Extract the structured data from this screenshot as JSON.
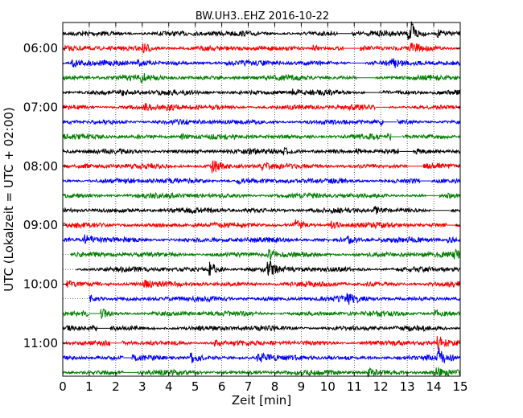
{
  "chart_data": {
    "type": "line",
    "title": "BW.UH3..EHZ 2016-10-22",
    "xlabel": "Zeit  [min]",
    "ylabel": "UTC (Lokalzeit = UTC + 02:00)",
    "xlim": [
      0,
      15
    ],
    "x_ticks": [
      "0",
      "1",
      "2",
      "3",
      "4",
      "5",
      "6",
      "7",
      "8",
      "9",
      "10",
      "11",
      "12",
      "13",
      "14",
      "15"
    ],
    "y_ticks": [
      "06:00",
      "07:00",
      "08:00",
      "09:00",
      "10:00",
      "11:00"
    ],
    "trace_start": "05:45",
    "trace_minutes": 15,
    "trace_count": 24,
    "colors": [
      "#000000",
      "#ff0000",
      "#0000ff",
      "#008000"
    ],
    "grid": true,
    "grid_style": "dotted",
    "traces": [
      {
        "start": "05:45",
        "color": "#000000",
        "gaps": [
          [
            10.4,
            10.9
          ]
        ]
      },
      {
        "start": "06:00",
        "color": "#ff0000",
        "gaps": [
          [
            10.6,
            11.2
          ]
        ]
      },
      {
        "start": "06:15",
        "color": "#0000ff",
        "gaps": [
          [
            10.9,
            11.4
          ]
        ]
      },
      {
        "start": "06:30",
        "color": "#008000",
        "gaps": [
          [
            11.1,
            11.8
          ]
        ]
      },
      {
        "start": "06:45",
        "color": "#000000",
        "gaps": [
          [
            11.4,
            11.9
          ]
        ]
      },
      {
        "start": "07:00",
        "color": "#ff0000",
        "gaps": [
          [
            11.8,
            12.3
          ]
        ]
      },
      {
        "start": "07:15",
        "color": "#0000ff",
        "gaps": [
          [
            12.1,
            12.6
          ]
        ]
      },
      {
        "start": "07:30",
        "color": "#008000",
        "gaps": [
          [
            12.4,
            12.8
          ]
        ]
      },
      {
        "start": "07:45",
        "color": "#000000",
        "gaps": [
          [
            12.7,
            13.2
          ]
        ]
      },
      {
        "start": "08:00",
        "color": "#ff0000",
        "gaps": [
          [
            13.0,
            13.6
          ]
        ]
      },
      {
        "start": "08:15",
        "color": "#0000ff",
        "gaps": [
          [
            13.5,
            13.9
          ]
        ]
      },
      {
        "start": "08:30",
        "color": "#008000",
        "gaps": [
          [
            13.7,
            14.2
          ]
        ]
      },
      {
        "start": "08:45",
        "color": "#000000",
        "gaps": [
          [
            13.9,
            14.6
          ]
        ]
      },
      {
        "start": "09:00",
        "color": "#ff0000",
        "gaps": [
          [
            14.5,
            14.8
          ]
        ]
      },
      {
        "start": "09:15",
        "color": "#0000ff",
        "gaps": []
      },
      {
        "start": "09:30",
        "color": "#008000",
        "gaps": [
          [
            0.0,
            0.3
          ]
        ]
      },
      {
        "start": "09:45",
        "color": "#000000",
        "gaps": [
          [
            0.0,
            0.5
          ]
        ]
      },
      {
        "start": "10:00",
        "color": "#ff0000",
        "gaps": [
          [
            0.0,
            0.1
          ]
        ]
      },
      {
        "start": "10:15",
        "color": "#0000ff",
        "gaps": [
          [
            0.0,
            1.0
          ]
        ]
      },
      {
        "start": "10:30",
        "color": "#008000",
        "gaps": [
          [
            1.0,
            1.4
          ]
        ]
      },
      {
        "start": "10:45",
        "color": "#000000",
        "gaps": [
          [
            1.3,
            1.8
          ]
        ]
      },
      {
        "start": "11:00",
        "color": "#ff0000",
        "gaps": [
          [
            1.8,
            2.2
          ]
        ]
      },
      {
        "start": "11:15",
        "color": "#0000ff",
        "gaps": [
          [
            2.3,
            2.6
          ]
        ]
      },
      {
        "start": "11:30",
        "color": "#008000",
        "gaps": [
          [
            2.3,
            2.8
          ]
        ]
      }
    ],
    "events": [
      {
        "trace": 0,
        "minute": 13.1,
        "amp": 2.6
      },
      {
        "trace": 0,
        "minute": 13.2,
        "amp": 2.4
      },
      {
        "trace": 0,
        "minute": 14.2,
        "amp": 1.4
      },
      {
        "trace": 1,
        "minute": 3.1,
        "amp": 1.8
      },
      {
        "trace": 1,
        "minute": 13.2,
        "amp": 2.2
      },
      {
        "trace": 1,
        "minute": 9.5,
        "amp": 1.1
      },
      {
        "trace": 2,
        "minute": 0.4,
        "amp": 1.6
      },
      {
        "trace": 2,
        "minute": 2.9,
        "amp": 1.1
      },
      {
        "trace": 2,
        "minute": 12.5,
        "amp": 1.2
      },
      {
        "trace": 3,
        "minute": 3.0,
        "amp": 1.4
      },
      {
        "trace": 4,
        "minute": 8.7,
        "amp": 1.1
      },
      {
        "trace": 4,
        "minute": 2.2,
        "amp": 1.0
      },
      {
        "trace": 5,
        "minute": 4.0,
        "amp": 1.0
      },
      {
        "trace": 5,
        "minute": 3.1,
        "amp": 1.0
      },
      {
        "trace": 6,
        "minute": 12.1,
        "amp": 1.3
      },
      {
        "trace": 7,
        "minute": 4.5,
        "amp": 1.2
      },
      {
        "trace": 7,
        "minute": 12.3,
        "amp": 1.0
      },
      {
        "trace": 8,
        "minute": 8.4,
        "amp": 1.0
      },
      {
        "trace": 8,
        "minute": 11.1,
        "amp": 1.0
      },
      {
        "trace": 9,
        "minute": 5.7,
        "amp": 2.4
      },
      {
        "trace": 9,
        "minute": 7.6,
        "amp": 1.2
      },
      {
        "trace": 10,
        "minute": 6.6,
        "amp": 1.1
      },
      {
        "trace": 12,
        "minute": 11.8,
        "amp": 1.2
      },
      {
        "trace": 13,
        "minute": 8.8,
        "amp": 1.8
      },
      {
        "trace": 13,
        "minute": 10.2,
        "amp": 1.5
      },
      {
        "trace": 14,
        "minute": 0.9,
        "amp": 1.6
      },
      {
        "trace": 14,
        "minute": 10.8,
        "amp": 1.2
      },
      {
        "trace": 14,
        "minute": 14.6,
        "amp": 1.1
      },
      {
        "trace": 15,
        "minute": 7.8,
        "amp": 1.8
      },
      {
        "trace": 15,
        "minute": 14.8,
        "amp": 1.4
      },
      {
        "trace": 16,
        "minute": 5.6,
        "amp": 2.6
      },
      {
        "trace": 16,
        "minute": 7.8,
        "amp": 3.0
      },
      {
        "trace": 17,
        "minute": 0.2,
        "amp": 1.2
      },
      {
        "trace": 17,
        "minute": 3.1,
        "amp": 1.4
      },
      {
        "trace": 18,
        "minute": 10.8,
        "amp": 1.8
      },
      {
        "trace": 18,
        "minute": 1.1,
        "amp": 1.2
      },
      {
        "trace": 19,
        "minute": 1.5,
        "amp": 1.3
      },
      {
        "trace": 19,
        "minute": 14.1,
        "amp": 1.2
      },
      {
        "trace": 20,
        "minute": 1.2,
        "amp": 1.2
      },
      {
        "trace": 21,
        "minute": 14.2,
        "amp": 2.4
      },
      {
        "trace": 21,
        "minute": 5.8,
        "amp": 1.2
      },
      {
        "trace": 22,
        "minute": 4.9,
        "amp": 1.6
      },
      {
        "trace": 22,
        "minute": 7.4,
        "amp": 1.8
      },
      {
        "trace": 22,
        "minute": 14.2,
        "amp": 3.4
      },
      {
        "trace": 23,
        "minute": 11.6,
        "amp": 2.0
      },
      {
        "trace": 23,
        "minute": 14.1,
        "amp": 1.6
      }
    ]
  }
}
